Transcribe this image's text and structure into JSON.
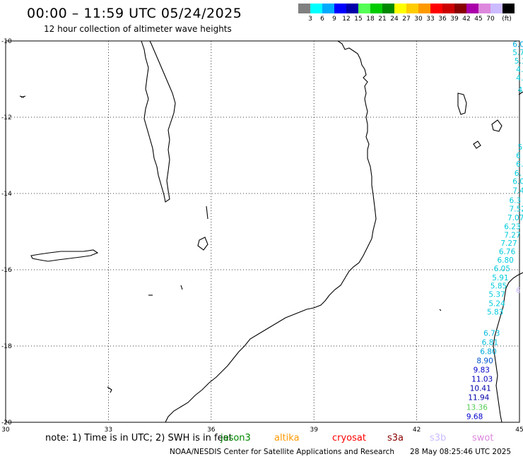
{
  "header": {
    "title": "00:00 – 11:59 UTC 05/24/2025",
    "subtitle": "12 hour collection of altimeter wave heights"
  },
  "color_scale": {
    "colors": [
      "#808080",
      "#00ffff",
      "#00aaff",
      "#0000ff",
      "#0000aa",
      "#55ff55",
      "#00cc00",
      "#008800",
      "#ffff00",
      "#ffcc00",
      "#ff9900",
      "#ff0000",
      "#cc0000",
      "#880000",
      "#aa00aa",
      "#dd88dd",
      "#ccbbff",
      "#000000"
    ],
    "labels": [
      "3",
      "6",
      "9",
      "12",
      "15",
      "18",
      "21",
      "24",
      "27",
      "30",
      "33",
      "36",
      "39",
      "42",
      "45",
      "70",
      "(ft)"
    ]
  },
  "axes": {
    "lat_labels": [
      "-10",
      "-12",
      "-14",
      "-16",
      "-18",
      "-20"
    ],
    "lon_labels": [
      "30",
      "33",
      "36",
      "39",
      "42",
      "45"
    ]
  },
  "map_data": {
    "lon_range": [
      30,
      45
    ],
    "lat_range": [
      -20,
      -10
    ],
    "wave_readings": [
      {
        "lon": 44.8,
        "lat": -10.08,
        "text": "6.0",
        "color": "#00aadd"
      },
      {
        "lon": 44.8,
        "lat": -10.3,
        "text": "5.7",
        "color": "#00ccdd"
      },
      {
        "lon": 44.85,
        "lat": -10.52,
        "text": "5.1",
        "color": "#00ccdd"
      },
      {
        "lon": 44.9,
        "lat": -10.74,
        "text": "4.",
        "color": "#00ccdd"
      },
      {
        "lon": 44.9,
        "lat": -10.96,
        "text": "4.",
        "color": "#00ccdd"
      },
      {
        "lon": 44.95,
        "lat": -11.28,
        "text": "4",
        "color": "#00ccdd"
      },
      {
        "lon": 44.95,
        "lat": -12.78,
        "text": "5",
        "color": "#00ccdd"
      },
      {
        "lon": 44.9,
        "lat": -13.0,
        "text": "6",
        "color": "#00ccdd"
      },
      {
        "lon": 44.9,
        "lat": -13.22,
        "text": "6.",
        "color": "#00ccdd"
      },
      {
        "lon": 44.85,
        "lat": -13.46,
        "text": "6.",
        "color": "#00ccdd"
      },
      {
        "lon": 44.8,
        "lat": -13.68,
        "text": "6.0",
        "color": "#00ccdd"
      },
      {
        "lon": 44.8,
        "lat": -13.92,
        "text": "7.4",
        "color": "#00ccdd"
      },
      {
        "lon": 44.7,
        "lat": -14.18,
        "text": "6.3",
        "color": "#00ccdd"
      },
      {
        "lon": 44.7,
        "lat": -14.4,
        "text": "7.52",
        "color": "#00ccdd"
      },
      {
        "lon": 44.65,
        "lat": -14.63,
        "text": "7.07",
        "color": "#00ccdd"
      },
      {
        "lon": 44.55,
        "lat": -14.86,
        "text": "6.23",
        "color": "#00ccdd"
      },
      {
        "lon": 44.55,
        "lat": -15.08,
        "text": "7.27",
        "color": "#00ccdd"
      },
      {
        "lon": 44.45,
        "lat": -15.3,
        "text": "7.27",
        "color": "#00ccdd"
      },
      {
        "lon": 44.4,
        "lat": -15.52,
        "text": "6.76",
        "color": "#00ccdd"
      },
      {
        "lon": 44.35,
        "lat": -15.74,
        "text": "6.80",
        "color": "#00ccdd"
      },
      {
        "lon": 44.25,
        "lat": -15.96,
        "text": "6.05",
        "color": "#00ccdd"
      },
      {
        "lon": 44.2,
        "lat": -16.2,
        "text": "5.91",
        "color": "#00ccdd"
      },
      {
        "lon": 44.15,
        "lat": -16.42,
        "text": "5.85",
        "color": "#00ccdd"
      },
      {
        "lon": 44.1,
        "lat": -16.64,
        "text": "5.37",
        "color": "#00ccdd"
      },
      {
        "lon": 44.1,
        "lat": -16.88,
        "text": "5.24",
        "color": "#00ccdd"
      },
      {
        "lon": 44.05,
        "lat": -17.1,
        "text": "5.83",
        "color": "#00ccdd"
      },
      {
        "lon": 43.95,
        "lat": -17.66,
        "text": "6.73",
        "color": "#00bbdd"
      },
      {
        "lon": 43.9,
        "lat": -17.9,
        "text": "6.81",
        "color": "#00bbdd"
      },
      {
        "lon": 43.85,
        "lat": -18.14,
        "text": "6.80",
        "color": "#00aadd"
      },
      {
        "lon": 43.75,
        "lat": -18.38,
        "text": "8.90",
        "color": "#0055cc"
      },
      {
        "lon": 43.65,
        "lat": -18.62,
        "text": "9.83",
        "color": "#0000cc"
      },
      {
        "lon": 43.6,
        "lat": -18.86,
        "text": "11.03",
        "color": "#0000bb"
      },
      {
        "lon": 43.55,
        "lat": -19.1,
        "text": "10.41",
        "color": "#0000aa"
      },
      {
        "lon": 43.5,
        "lat": -19.34,
        "text": "11.94",
        "color": "#0000aa"
      },
      {
        "lon": 43.45,
        "lat": -19.6,
        "text": "13.36",
        "color": "#55cc55"
      },
      {
        "lon": 43.45,
        "lat": -19.84,
        "text": "9.68",
        "color": "#0000cc"
      },
      {
        "lon": 44.9,
        "lat": -16.54,
        "text": "6",
        "color": "#ccbbff"
      }
    ]
  },
  "footer": {
    "note": "note:  1) Time is in UTC;  2) SWH is in feet",
    "satellites": [
      {
        "label": "jason3",
        "color": "#008800"
      },
      {
        "label": "altika",
        "color": "#ff9900"
      },
      {
        "label": "cryosat",
        "color": "#ff0000"
      },
      {
        "label": "s3a",
        "color": "#880000"
      },
      {
        "label": "s3b",
        "color": "#ccbbff"
      },
      {
        "label": "swot",
        "color": "#dd88dd"
      }
    ],
    "credit": "NOAA/NESDIS Center for Satellite Applications and Research",
    "generated": "28 May 08:25:46 UTC 2025"
  }
}
